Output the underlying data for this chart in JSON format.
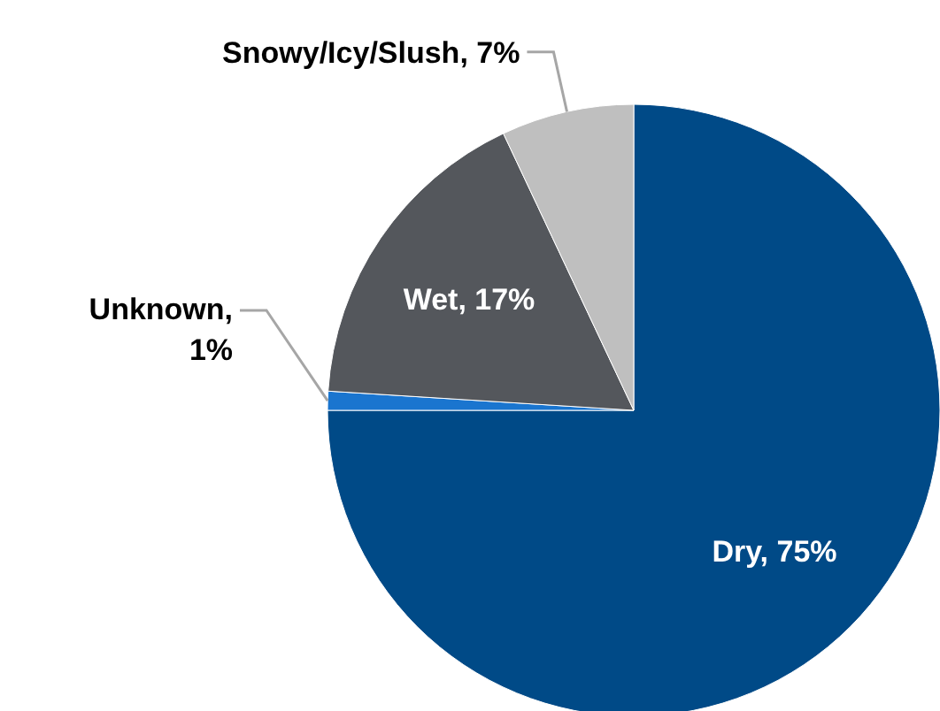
{
  "chart_data": {
    "type": "pie",
    "categories": [
      "Dry",
      "Unknown",
      "Wet",
      "Snowy/Icy/Slush"
    ],
    "values": [
      75,
      1,
      17,
      7
    ],
    "colors": [
      "#004a87",
      "#1a75cf",
      "#54575c",
      "#bfbfbf"
    ],
    "value_labels": [
      ", 75%",
      ", 1%",
      ", 17%",
      ", 7%"
    ]
  }
}
